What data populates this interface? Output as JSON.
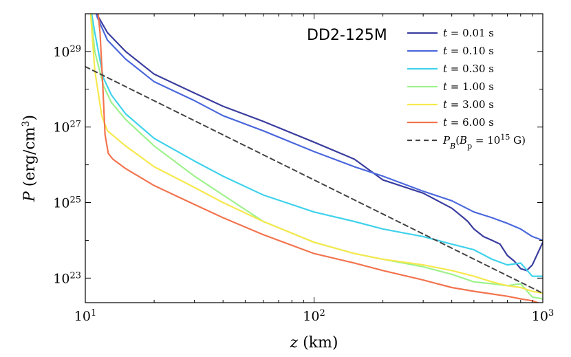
{
  "chart_data": {
    "type": "line",
    "panel_label": "DD2-125M",
    "xlabel": "z (km)",
    "ylabel": "P (erg/cm³)",
    "x_scale": "log",
    "y_scale": "log",
    "xlim": [
      10,
      1000
    ],
    "ylim_log10": [
      22.35,
      30
    ],
    "x_ticks": [
      {
        "value": 10,
        "base": "10",
        "exp": "1"
      },
      {
        "value": 100,
        "base": "10",
        "exp": "2"
      },
      {
        "value": 1000,
        "base": "10",
        "exp": "3"
      }
    ],
    "y_ticks": [
      {
        "log10": 23,
        "base": "10",
        "exp": "23"
      },
      {
        "log10": 25,
        "base": "10",
        "exp": "25"
      },
      {
        "log10": 27,
        "base": "10",
        "exp": "27"
      },
      {
        "log10": 29,
        "base": "10",
        "exp": "29"
      }
    ],
    "legend_position": "top-right",
    "series": [
      {
        "name": "t = 0.01 s",
        "color": "#3a3d9e",
        "dashed": false,
        "x": [
          10.4,
          11.2,
          12.5,
          15,
          20,
          30,
          40,
          60,
          100,
          150,
          200,
          300,
          400,
          450,
          470,
          500,
          550,
          600,
          650,
          700,
          750,
          800,
          850,
          900,
          1000
        ],
        "log10P": [
          30.6,
          30.0,
          29.5,
          29.0,
          28.4,
          27.9,
          27.55,
          27.15,
          26.6,
          26.15,
          25.6,
          25.25,
          24.85,
          24.6,
          24.5,
          24.3,
          24.1,
          24.0,
          23.9,
          23.6,
          23.45,
          23.25,
          23.2,
          23.35,
          23.95
        ]
      },
      {
        "name": "t = 0.10 s",
        "color": "#4a67dc",
        "dashed": false,
        "x": [
          10.4,
          11.3,
          12.5,
          15,
          20,
          30,
          40,
          60,
          100,
          150,
          200,
          300,
          400,
          500,
          600,
          700,
          800,
          900,
          1000
        ],
        "log10P": [
          30.6,
          29.9,
          29.3,
          28.8,
          28.2,
          27.7,
          27.3,
          26.9,
          26.35,
          25.95,
          25.7,
          25.3,
          25.05,
          24.75,
          24.6,
          24.45,
          24.3,
          24.1,
          24.0
        ]
      },
      {
        "name": "t = 0.30 s",
        "color": "#3fd2ec",
        "dashed": false,
        "x": [
          10.4,
          11,
          12,
          13,
          15,
          20,
          30,
          40,
          60,
          100,
          150,
          200,
          300,
          400,
          500,
          600,
          700,
          800,
          900,
          1000
        ],
        "log10P": [
          30.4,
          29.5,
          28.3,
          27.85,
          27.35,
          26.7,
          26.1,
          25.7,
          25.2,
          24.75,
          24.5,
          24.3,
          24.1,
          23.9,
          23.75,
          23.5,
          23.35,
          23.4,
          23.05,
          23.05
        ]
      },
      {
        "name": "t = 1.00 s",
        "color": "#9ef28c",
        "dashed": false,
        "x": [
          10.4,
          11,
          12,
          13,
          15,
          20,
          30,
          40,
          60,
          100,
          150,
          200,
          300,
          400,
          500,
          600,
          700,
          800,
          900,
          1000
        ],
        "log10P": [
          30.4,
          29.0,
          28.1,
          27.65,
          27.2,
          26.5,
          25.7,
          25.2,
          24.5,
          23.95,
          23.65,
          23.5,
          23.3,
          23.1,
          22.9,
          22.85,
          22.8,
          22.85,
          22.5,
          22.45
        ]
      },
      {
        "name": "t = 3.00 s",
        "color": "#f6e84e",
        "dashed": false,
        "x": [
          10.4,
          11,
          11.8,
          12.5,
          15,
          20,
          30,
          40,
          60,
          100,
          150,
          200,
          300,
          400,
          500,
          600,
          700,
          800,
          900,
          1000
        ],
        "log10P": [
          30.5,
          28.5,
          27.3,
          26.9,
          26.5,
          25.95,
          25.4,
          25.0,
          24.5,
          23.95,
          23.65,
          23.5,
          23.35,
          23.2,
          23.05,
          22.9,
          22.8,
          22.75,
          22.65,
          22.6
        ]
      },
      {
        "name": "t = 6.00 s",
        "color": "#f2744e",
        "dashed": false,
        "x": [
          11.2,
          11.6,
          11.9,
          12.2,
          12.6,
          13.2,
          15,
          20,
          30,
          40,
          60,
          100,
          150,
          200,
          300,
          400,
          500,
          600,
          700,
          800,
          900,
          1000
        ],
        "log10P": [
          30.4,
          29.5,
          28.2,
          26.8,
          26.3,
          26.15,
          25.9,
          25.45,
          24.95,
          24.6,
          24.15,
          23.65,
          23.4,
          23.2,
          22.95,
          22.75,
          22.65,
          22.58,
          22.52,
          22.45,
          22.4,
          22.3
        ]
      },
      {
        "name": "P_B(B_p = 10^15 G)",
        "color": "#444444",
        "dashed": true,
        "x": [
          10,
          1000
        ],
        "log10P": [
          28.6,
          22.6
        ]
      }
    ]
  }
}
